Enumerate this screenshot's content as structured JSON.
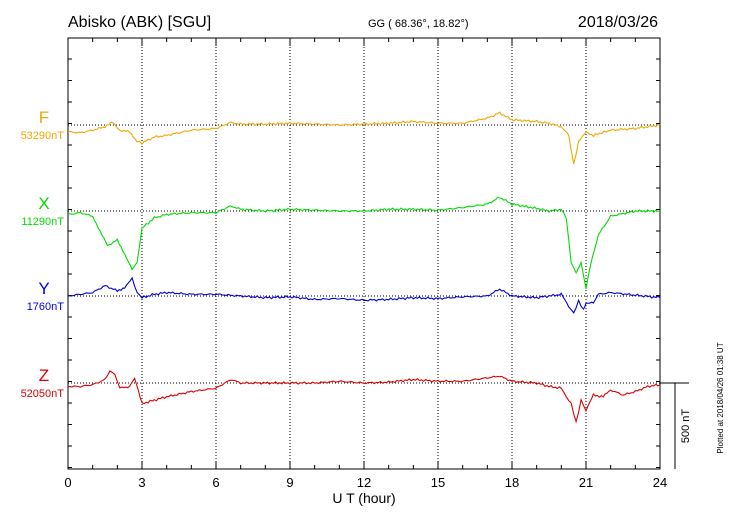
{
  "header": {
    "station": "Abisko (ABK)  [SGU]",
    "coords": "GG ( 68.36°,  18.82°)",
    "date": "2018/03/26"
  },
  "plotted_note": "Plotted at 2018/04/26 01:38 UT",
  "scale_label": "500 nT",
  "colors": {
    "F": "#f0a800",
    "X": "#00dd00",
    "Y": "#0000dd",
    "Z": "#dd0000"
  },
  "chart_data": {
    "type": "line",
    "xlabel": "U T (hour)",
    "xlim": [
      0,
      24
    ],
    "xticks": [
      0,
      3,
      6,
      9,
      12,
      15,
      18,
      21,
      24
    ],
    "ylabel": "",
    "scale_nT": 500,
    "series": [
      {
        "name": "F",
        "baseline_label": "53290nT",
        "baseline_nT": 53290,
        "values": [
          [
            0.0,
            -40
          ],
          [
            0.5,
            -45
          ],
          [
            1.0,
            -30
          ],
          [
            1.5,
            -10
          ],
          [
            1.8,
            15
          ],
          [
            2.1,
            -30
          ],
          [
            2.5,
            -40
          ],
          [
            2.8,
            -95
          ],
          [
            3.0,
            -105
          ],
          [
            3.5,
            -70
          ],
          [
            4.0,
            -60
          ],
          [
            5.0,
            -30
          ],
          [
            6.0,
            -20
          ],
          [
            6.6,
            15
          ],
          [
            7.0,
            5
          ],
          [
            8.0,
            5
          ],
          [
            9.0,
            10
          ],
          [
            10.0,
            5
          ],
          [
            11.0,
            0
          ],
          [
            12.0,
            5
          ],
          [
            13.0,
            10
          ],
          [
            14.0,
            20
          ],
          [
            15.0,
            10
          ],
          [
            16.0,
            10
          ],
          [
            17.0,
            40
          ],
          [
            17.5,
            70
          ],
          [
            18.0,
            30
          ],
          [
            19.0,
            20
          ],
          [
            19.5,
            10
          ],
          [
            20.0,
            -10
          ],
          [
            20.3,
            -60
          ],
          [
            20.5,
            -230
          ],
          [
            20.7,
            -100
          ],
          [
            21.0,
            -40
          ],
          [
            21.3,
            -60
          ],
          [
            22.0,
            -30
          ],
          [
            23.0,
            -20
          ],
          [
            23.5,
            -10
          ],
          [
            24.0,
            0
          ]
        ]
      },
      {
        "name": "X",
        "baseline_label": "11290nT",
        "baseline_nT": 11290,
        "values": [
          [
            0.0,
            -20
          ],
          [
            0.5,
            -10
          ],
          [
            1.0,
            -30
          ],
          [
            1.3,
            -120
          ],
          [
            1.6,
            -200
          ],
          [
            2.0,
            -170
          ],
          [
            2.3,
            -250
          ],
          [
            2.6,
            -340
          ],
          [
            2.8,
            -300
          ],
          [
            3.0,
            -100
          ],
          [
            3.5,
            -40
          ],
          [
            4.0,
            -20
          ],
          [
            5.0,
            -10
          ],
          [
            6.0,
            -10
          ],
          [
            6.6,
            30
          ],
          [
            7.0,
            10
          ],
          [
            8.0,
            0
          ],
          [
            9.0,
            10
          ],
          [
            10.0,
            5
          ],
          [
            11.0,
            0
          ],
          [
            12.0,
            0
          ],
          [
            13.0,
            10
          ],
          [
            14.0,
            10
          ],
          [
            15.0,
            5
          ],
          [
            16.0,
            20
          ],
          [
            17.0,
            40
          ],
          [
            17.5,
            80
          ],
          [
            18.0,
            40
          ],
          [
            19.0,
            15
          ],
          [
            19.5,
            0
          ],
          [
            20.0,
            10
          ],
          [
            20.2,
            -40
          ],
          [
            20.4,
            -300
          ],
          [
            20.6,
            -360
          ],
          [
            20.8,
            -300
          ],
          [
            21.0,
            -450
          ],
          [
            21.2,
            -300
          ],
          [
            21.5,
            -140
          ],
          [
            22.0,
            -30
          ],
          [
            23.0,
            0
          ],
          [
            24.0,
            0
          ]
        ]
      },
      {
        "name": "Y",
        "baseline_label": "1760nT",
        "baseline_nT": 1760,
        "values": [
          [
            0.0,
            0
          ],
          [
            0.5,
            10
          ],
          [
            1.0,
            20
          ],
          [
            1.5,
            60
          ],
          [
            2.0,
            30
          ],
          [
            2.3,
            50
          ],
          [
            2.6,
            100
          ],
          [
            2.8,
            20
          ],
          [
            3.0,
            -10
          ],
          [
            3.5,
            10
          ],
          [
            4.0,
            20
          ],
          [
            5.0,
            10
          ],
          [
            6.0,
            10
          ],
          [
            7.0,
            0
          ],
          [
            8.0,
            -10
          ],
          [
            9.0,
            -5
          ],
          [
            10.0,
            -20
          ],
          [
            11.0,
            -15
          ],
          [
            12.0,
            -25
          ],
          [
            13.0,
            -20
          ],
          [
            14.0,
            -10
          ],
          [
            15.0,
            -15
          ],
          [
            16.0,
            -5
          ],
          [
            17.0,
            0
          ],
          [
            17.5,
            40
          ],
          [
            18.0,
            0
          ],
          [
            19.0,
            -10
          ],
          [
            20.0,
            10
          ],
          [
            20.3,
            -60
          ],
          [
            20.5,
            -100
          ],
          [
            20.7,
            -30
          ],
          [
            20.9,
            -80
          ],
          [
            21.0,
            -40
          ],
          [
            21.3,
            -40
          ],
          [
            21.5,
            10
          ],
          [
            22.0,
            20
          ],
          [
            23.0,
            5
          ],
          [
            24.0,
            -10
          ]
        ]
      },
      {
        "name": "Z",
        "baseline_label": "52050nT",
        "baseline_nT": 52050,
        "values": [
          [
            0.0,
            -20
          ],
          [
            0.5,
            -20
          ],
          [
            1.0,
            -10
          ],
          [
            1.5,
            20
          ],
          [
            1.7,
            70
          ],
          [
            1.9,
            50
          ],
          [
            2.1,
            -30
          ],
          [
            2.5,
            -20
          ],
          [
            2.7,
            30
          ],
          [
            3.0,
            -120
          ],
          [
            3.5,
            -100
          ],
          [
            4.0,
            -80
          ],
          [
            5.0,
            -50
          ],
          [
            6.0,
            -30
          ],
          [
            6.6,
            20
          ],
          [
            7.0,
            0
          ],
          [
            8.0,
            0
          ],
          [
            9.0,
            0
          ],
          [
            10.0,
            0
          ],
          [
            11.0,
            10
          ],
          [
            12.0,
            0
          ],
          [
            13.0,
            5
          ],
          [
            14.0,
            20
          ],
          [
            15.0,
            10
          ],
          [
            16.0,
            10
          ],
          [
            17.0,
            30
          ],
          [
            17.5,
            40
          ],
          [
            18.0,
            10
          ],
          [
            19.0,
            0
          ],
          [
            19.5,
            -20
          ],
          [
            20.0,
            -30
          ],
          [
            20.2,
            -80
          ],
          [
            20.4,
            -120
          ],
          [
            20.6,
            -230
          ],
          [
            20.8,
            -100
          ],
          [
            21.0,
            -160
          ],
          [
            21.3,
            -70
          ],
          [
            21.7,
            -80
          ],
          [
            22.0,
            -40
          ],
          [
            22.5,
            -70
          ],
          [
            23.0,
            -50
          ],
          [
            23.5,
            -20
          ],
          [
            24.0,
            -10
          ]
        ]
      }
    ]
  }
}
